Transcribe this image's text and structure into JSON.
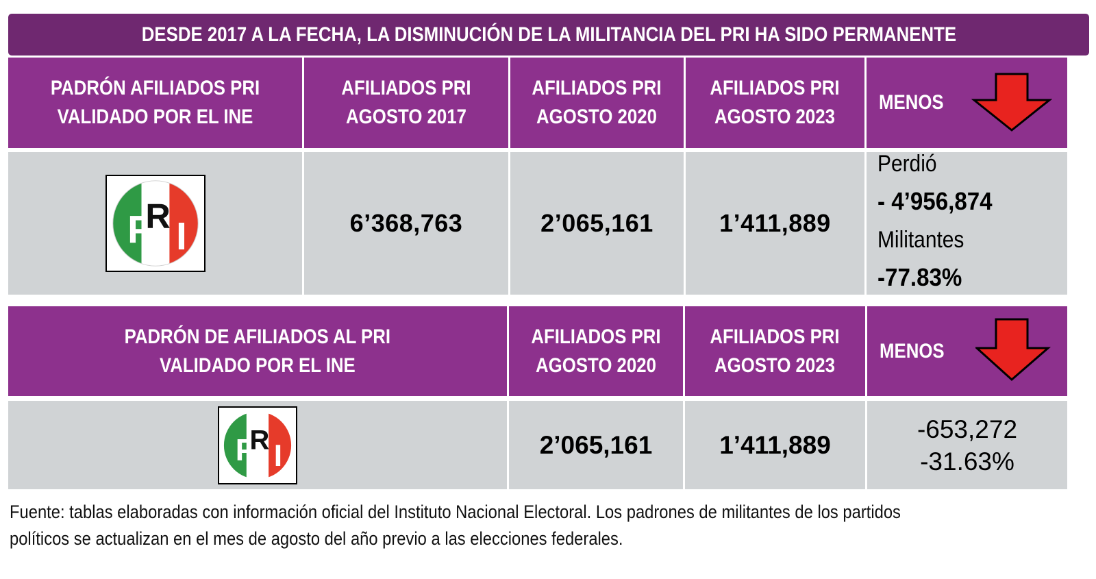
{
  "title": "DESDE 2017 A LA FECHA, LA DISMINUCIÓN DE LA MILITANCIA DEL PRI HA SIDO PERMANENTE",
  "colors": {
    "header": "#8d318d",
    "title_bar": "#6f2870",
    "row": "#d0d3d5",
    "arrow": "#e8231f"
  },
  "table1": {
    "headers": {
      "padron_line1": "PADRÓN AFILIADOS PRI",
      "padron_line2": "VALIDADO POR EL INE",
      "c2017_line1": "AFILIADOS PRI",
      "c2017_line2": "AGOSTO 2017",
      "c2020_line1": "AFILIADOS PRI",
      "c2020_line2": "AGOSTO 2020",
      "c2023_line1": "AFILIADOS PRI",
      "c2023_line2": "AGOSTO 2023",
      "menos": "MENOS"
    },
    "row": {
      "logo_letters": [
        "P",
        "R",
        "I"
      ],
      "v2017": "6’368,763",
      "v2020": "2’065,161",
      "v2023": "1’411,889",
      "lost_label": "Perdió",
      "lost_value": "- 4’956,874",
      "lost_unit": "Militantes",
      "lost_pct": "-77.83%"
    },
    "arrow_icon": "down-arrow-icon"
  },
  "table2": {
    "headers": {
      "padron_line1": "PADRÓN DE AFILIADOS AL PRI",
      "padron_line2": "VALIDADO POR EL INE",
      "c2020_line1": "AFILIADOS PRI",
      "c2020_line2": "AGOSTO 2020",
      "c2023_line1": "AFILIADOS PRI",
      "c2023_line2": "AGOSTO 2023",
      "menos": "MENOS"
    },
    "row": {
      "logo_letters": [
        "P",
        "R",
        "I"
      ],
      "v2020": "2’065,161",
      "v2023": "1’411,889",
      "diff_value": "-653,272",
      "diff_pct": "-31.63%"
    },
    "arrow_icon": "down-arrow-icon"
  },
  "footnote": {
    "line1": "Fuente: tablas elaboradas con información oficial del Instituto Nacional Electoral. Los padrones de militantes de los partidos",
    "line2": "políticos se actualizan en el mes de agosto del año previo a las elecciones federales."
  }
}
